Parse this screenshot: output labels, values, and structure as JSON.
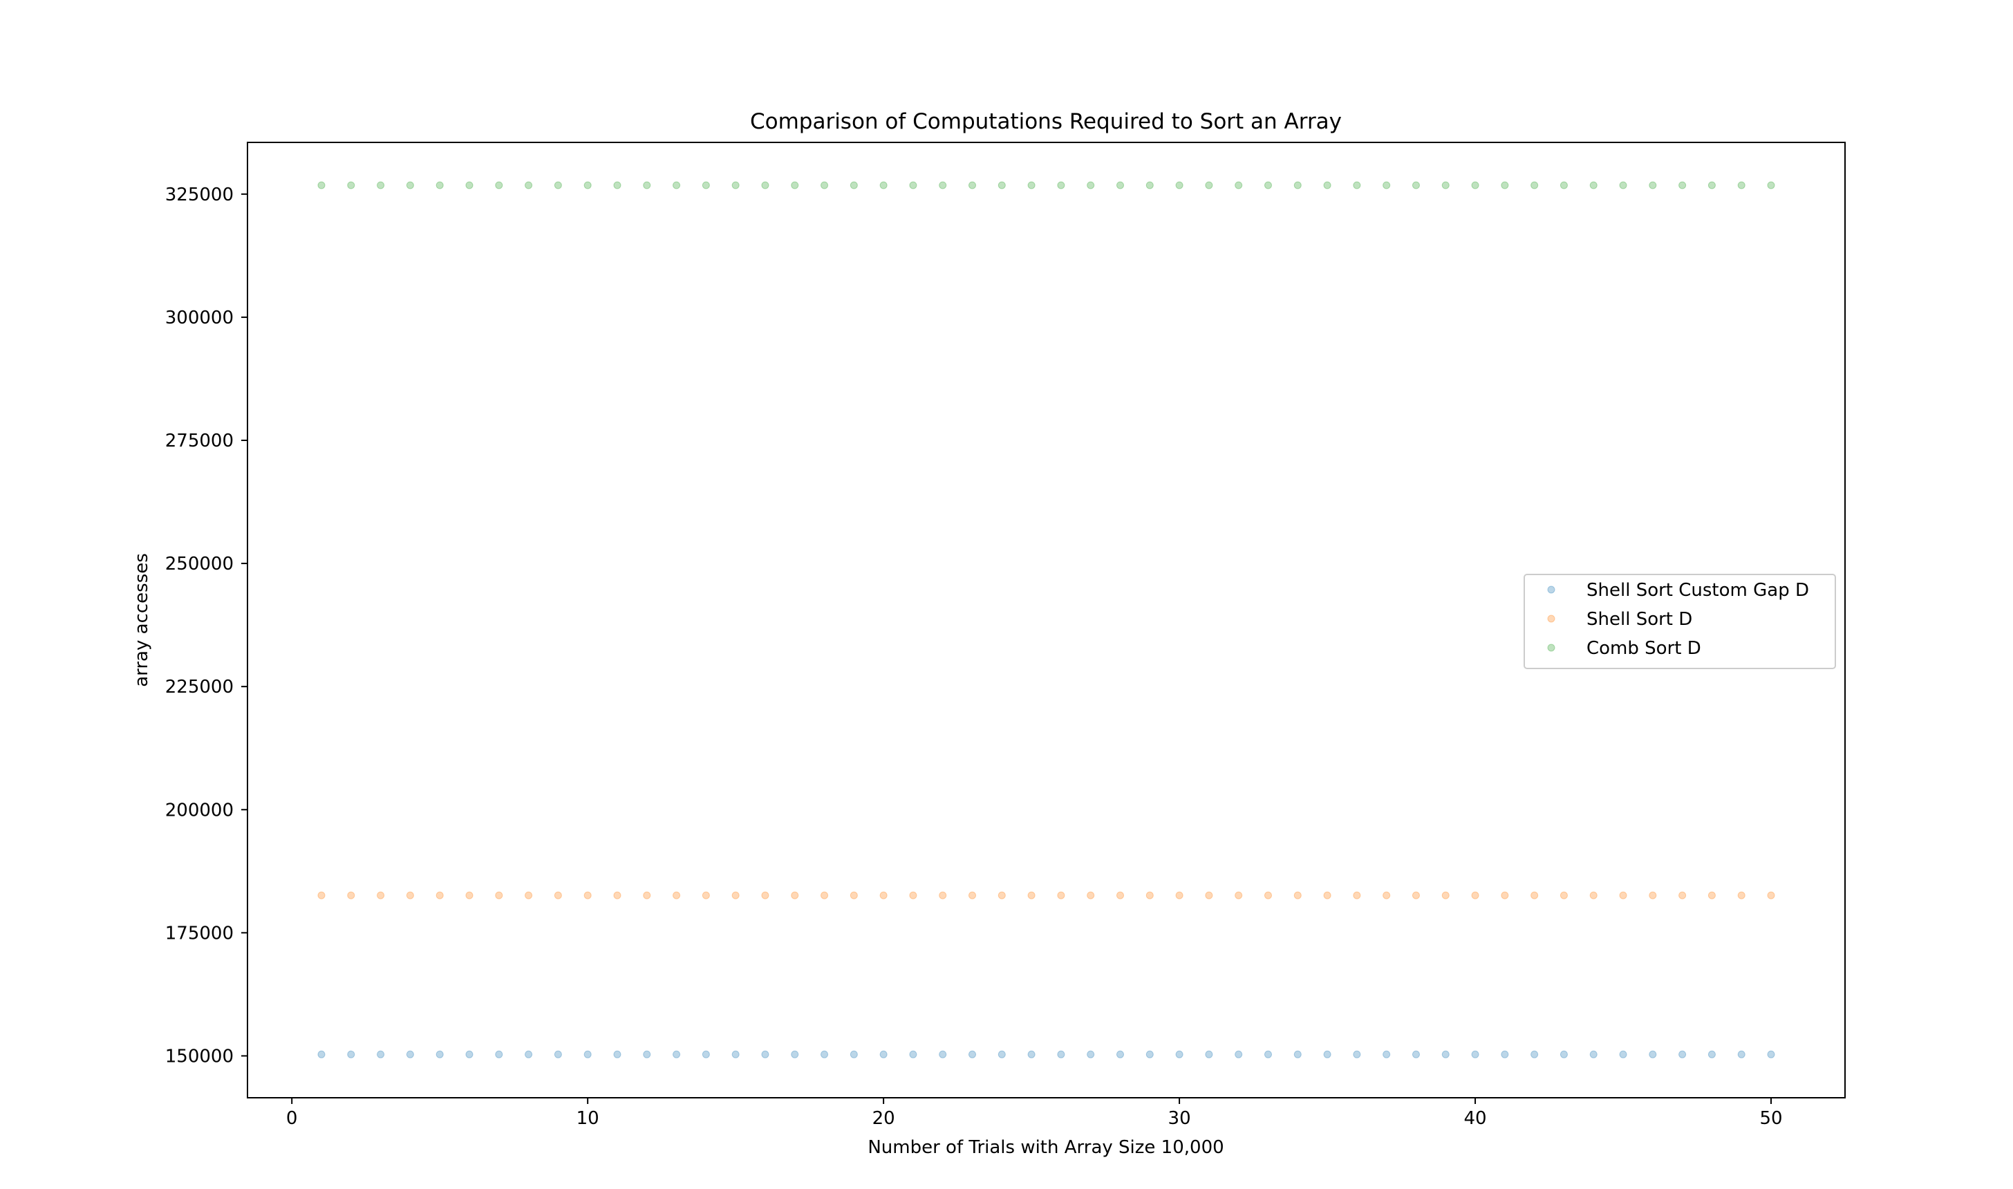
{
  "chart_data": {
    "type": "scatter",
    "title": "Comparison of Computations Required to Sort an Array",
    "xlabel": "Number of Trials with Array Size 10,000",
    "ylabel": "array accesses",
    "xlim": [
      -1.5,
      52.5
    ],
    "ylim": [
      141500,
      335500
    ],
    "xticks": [
      0,
      10,
      20,
      30,
      40,
      50
    ],
    "yticks": [
      150000,
      175000,
      200000,
      225000,
      250000,
      275000,
      300000,
      325000
    ],
    "grid": false,
    "legend_position": "center-right",
    "x": [
      1,
      2,
      3,
      4,
      5,
      6,
      7,
      8,
      9,
      10,
      11,
      12,
      13,
      14,
      15,
      16,
      17,
      18,
      19,
      20,
      21,
      22,
      23,
      24,
      25,
      26,
      27,
      28,
      29,
      30,
      31,
      32,
      33,
      34,
      35,
      36,
      37,
      38,
      39,
      40,
      41,
      42,
      43,
      44,
      45,
      46,
      47,
      48,
      49,
      50
    ],
    "series": [
      {
        "name": "Shell Sort Custom Gap D",
        "color": "#1f77b4",
        "constant_value": 150300
      },
      {
        "name": "Shell Sort D",
        "color": "#ff7f0e",
        "constant_value": 182600
      },
      {
        "name": "Comb Sort D",
        "color": "#2ca02c",
        "constant_value": 326800
      }
    ]
  }
}
